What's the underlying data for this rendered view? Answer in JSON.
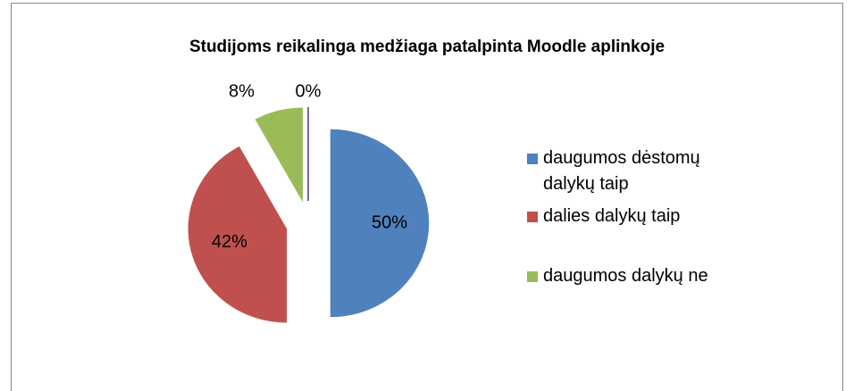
{
  "chart_data": {
    "type": "pie",
    "title": "Studijoms reikalinga medžiaga patalpinta Moodle aplinkoje",
    "categories": [
      "daugumos dėstomų dalykų taip",
      "dalies dalykų taip",
      "daugumos dalykų ne",
      null
    ],
    "values": [
      50,
      42,
      8,
      0
    ],
    "value_labels": [
      "50%",
      "42%",
      "8%",
      "0%"
    ],
    "colors": [
      "#4f81bd",
      "#c0504d",
      "#9bbb59",
      "#8064a2"
    ],
    "legend": "right"
  }
}
